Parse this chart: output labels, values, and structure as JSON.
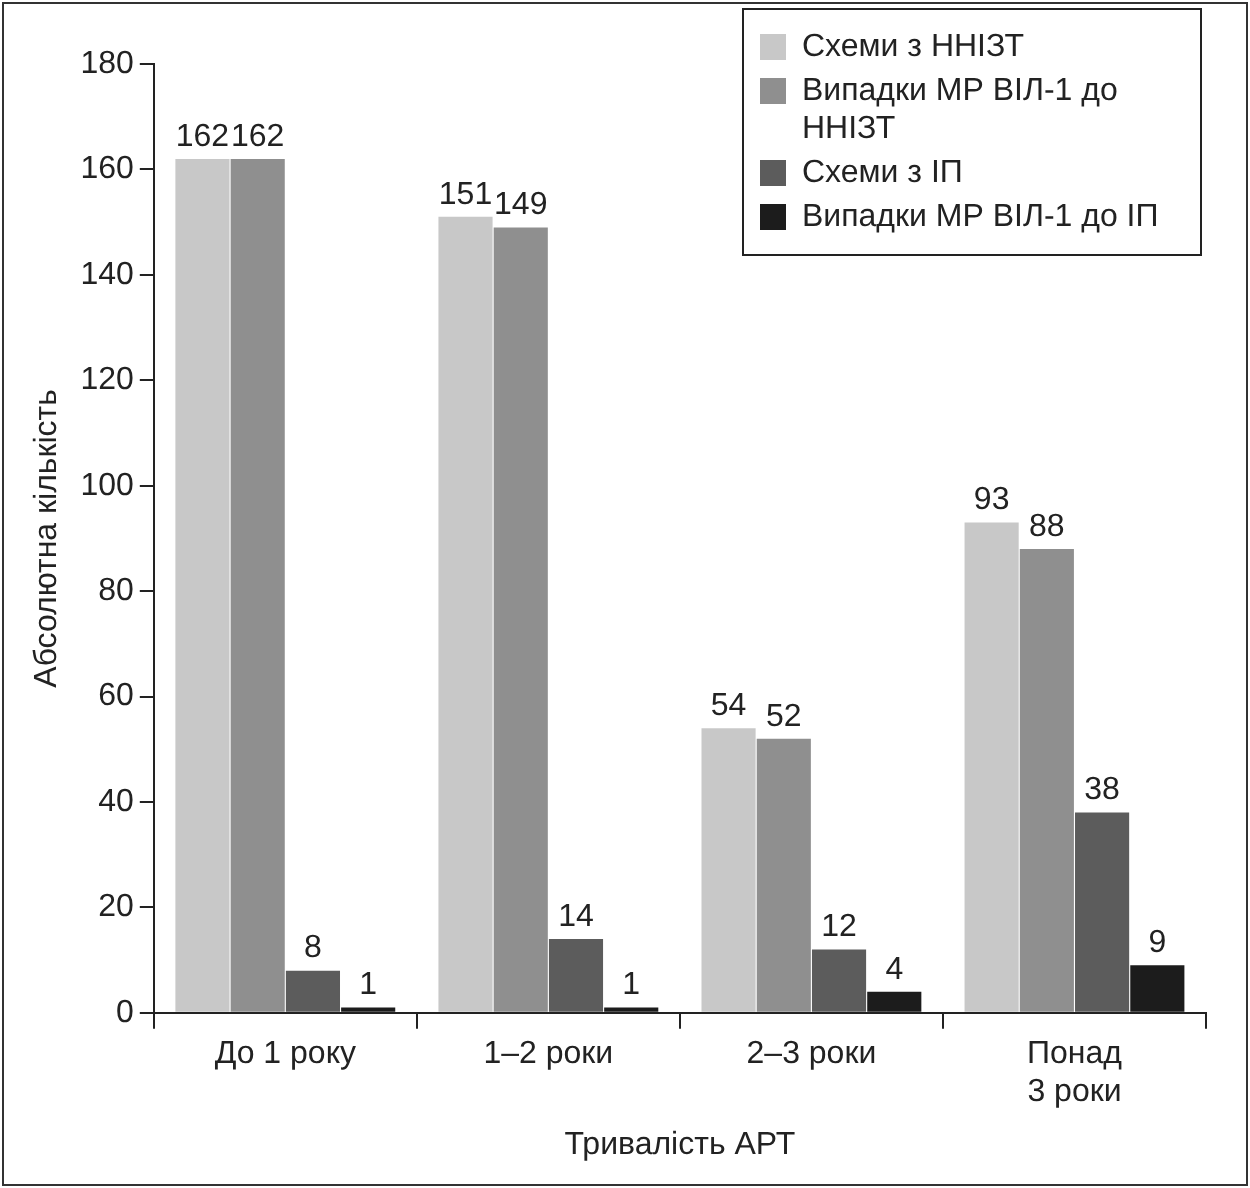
{
  "chart_data": {
    "type": "bar",
    "xlabel": "Тривалість АРТ",
    "ylabel": "Абсолютна кількість",
    "categories": [
      "До 1 року",
      "1–2 роки",
      "2–3 роки",
      "Понад 3 роки"
    ],
    "series": [
      {
        "name": "Схеми з ННІЗТ",
        "color": "#c8c8c8",
        "values": [
          162,
          151,
          54,
          93
        ]
      },
      {
        "name": "Випадки МР ВІЛ-1 до ННІЗТ",
        "color": "#8f8f8f",
        "values": [
          162,
          149,
          52,
          88
        ]
      },
      {
        "name": "Схеми з ІП",
        "color": "#5c5c5c",
        "values": [
          8,
          14,
          12,
          38
        ]
      },
      {
        "name": "Випадки МР ВІЛ-1 до ІП",
        "color": "#1c1c1c",
        "values": [
          1,
          1,
          4,
          9
        ]
      }
    ],
    "ylim": [
      0,
      180
    ],
    "yticks": [
      0,
      20,
      40,
      60,
      80,
      100,
      120,
      140,
      160,
      180
    ],
    "grid": false,
    "legend": "top right",
    "data_labels": true
  }
}
